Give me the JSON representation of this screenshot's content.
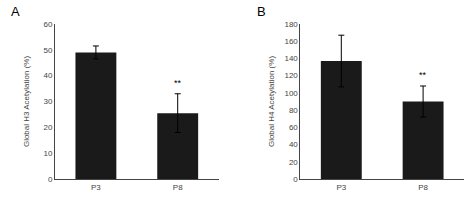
{
  "chart_data": [
    {
      "type": "bar",
      "title": "A",
      "categories": [
        "P3",
        "P8"
      ],
      "values": [
        49,
        25.5
      ],
      "errors": [
        2.5,
        7.5
      ],
      "color": "#1a1a1a",
      "ylabel": "Global H3 Acetylation (%)",
      "ylim": [
        0,
        60
      ],
      "yticks": [
        0,
        10,
        20,
        30,
        40,
        50,
        60
      ],
      "annotations": [
        {
          "category": "P8",
          "text": "**"
        }
      ],
      "grid": false
    },
    {
      "type": "bar",
      "title": "B",
      "categories": [
        "P3",
        "P8"
      ],
      "values": [
        137,
        90
      ],
      "errors": [
        30,
        18
      ],
      "color": "#1a1a1a",
      "ylabel": "Global H4 Acetylation (%)",
      "ylim": [
        0,
        180
      ],
      "yticks": [
        0,
        20,
        40,
        60,
        80,
        100,
        120,
        140,
        160,
        180
      ],
      "annotations": [
        {
          "category": "P8",
          "text": "**"
        }
      ],
      "grid": false
    }
  ]
}
